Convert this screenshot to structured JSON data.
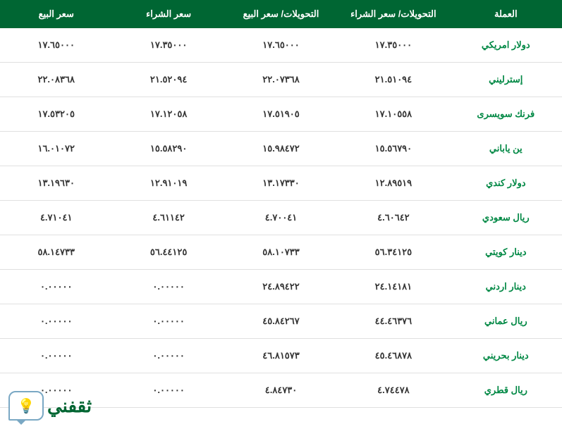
{
  "table": {
    "header_bg": "#006633",
    "header_text_color": "#ffffff",
    "currency_text_color": "#008844",
    "value_text_color": "#333333",
    "border_color": "#e0e0e0",
    "columns": [
      "العملة",
      "التحويلات/ سعر الشراء",
      "التحويلات/ سعر البيع",
      "سعر الشراء",
      "سعر البيع"
    ],
    "rows": [
      {
        "currency": "دولار امريكي",
        "transfer_buy": "١٧.٣٥٠٠٠",
        "transfer_sell": "١٧.٦٥٠٠٠",
        "buy": "١٧.٣٥٠٠٠",
        "sell": "١٧.٦٥٠٠٠"
      },
      {
        "currency": "إسترليني",
        "transfer_buy": "٢١.٥١٠٩٤",
        "transfer_sell": "٢٢.٠٧٣٦٨",
        "buy": "٢١.٥٢٠٩٤",
        "sell": "٢٢.٠٨٣٦٨"
      },
      {
        "currency": "فرنك سويسرى",
        "transfer_buy": "١٧.١٠٥٥٨",
        "transfer_sell": "١٧.٥١٩٠٥",
        "buy": "١٧.١٢٠٥٨",
        "sell": "١٧.٥٣٢٠٥"
      },
      {
        "currency": "ين ياباني",
        "transfer_buy": "١٥.٥٦٧٩٠",
        "transfer_sell": "١٥.٩٨٤٧٢",
        "buy": "١٥.٥٨٢٩٠",
        "sell": "١٦.٠١٠٧٢"
      },
      {
        "currency": "دولار كندي",
        "transfer_buy": "١٢.٨٩٥١٩",
        "transfer_sell": "١٣.١٧٣٣٠",
        "buy": "١٢.٩١٠١٩",
        "sell": "١٣.١٩٦٣٠"
      },
      {
        "currency": "ريال سعودي",
        "transfer_buy": "٤.٦٠٦٤٢",
        "transfer_sell": "٤.٧٠٠٤١",
        "buy": "٤.٦١١٤٢",
        "sell": "٤.٧١٠٤١"
      },
      {
        "currency": "دينار كويتي",
        "transfer_buy": "٥٦.٣٤١٢٥",
        "transfer_sell": "٥٨.١٠٧٣٣",
        "buy": "٥٦.٤٤١٢٥",
        "sell": "٥٨.١٤٧٣٣"
      },
      {
        "currency": "دينار اردني",
        "transfer_buy": "٢٤.١٤١٨١",
        "transfer_sell": "٢٤.٨٩٤٢٢",
        "buy": "٠.٠٠٠٠٠",
        "sell": "٠.٠٠٠٠٠"
      },
      {
        "currency": "ريال عماني",
        "transfer_buy": "٤٤.٤٦٣٧٦",
        "transfer_sell": "٤٥.٨٤٢٦٧",
        "buy": "٠.٠٠٠٠٠",
        "sell": "٠.٠٠٠٠٠"
      },
      {
        "currency": "دينار بحريني",
        "transfer_buy": "٤٥.٤٦٨٧٨",
        "transfer_sell": "٤٦.٨١٥٧٣",
        "buy": "٠.٠٠٠٠٠",
        "sell": "٠.٠٠٠٠٠"
      },
      {
        "currency": "ريال قطري",
        "transfer_buy": "٤.٧٤٤٧٨",
        "transfer_sell": "٤.٨٤٧٣٠",
        "buy": "٠.٠٠٠٠٠",
        "sell": "٠.٠٠٠٠٠"
      }
    ]
  },
  "watermark": {
    "text": "ثقفني",
    "bulb_icon": "💡",
    "border_color": "#7aa8c4",
    "text_color": "#006633"
  }
}
